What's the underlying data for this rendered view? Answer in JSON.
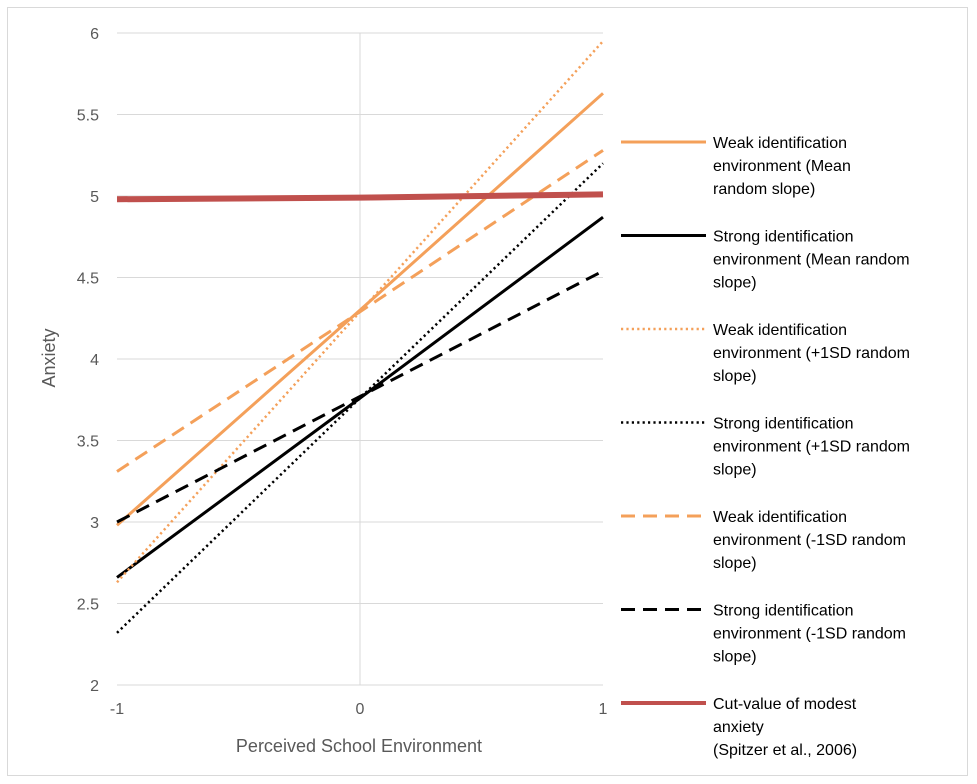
{
  "chart_data": {
    "type": "line",
    "xlabel": "Perceived School Environment",
    "ylabel": "Anxiety",
    "xlim": [
      -1,
      1
    ],
    "ylim": [
      2,
      6
    ],
    "x_ticks": [
      "-1",
      "0",
      "1"
    ],
    "y_ticks": [
      "2",
      "2.5",
      "3",
      "3.5",
      "4",
      "4.5",
      "5",
      "5.5",
      "6"
    ],
    "grid": "horizontal",
    "legend_position": "right",
    "x": [
      -1,
      0,
      1
    ],
    "series": [
      {
        "name_lines": [
          "Weak identification",
          "environment  (Mean",
          "random slope)"
        ],
        "values": [
          2.98,
          4.3,
          5.63
        ],
        "color": "#f4a05a",
        "dash": "solid",
        "width": 3
      },
      {
        "name_lines": [
          "Strong identification",
          "environment (Mean random",
          "slope)"
        ],
        "values": [
          2.66,
          3.76,
          4.87
        ],
        "color": "#000000",
        "dash": "solid",
        "width": 3
      },
      {
        "name_lines": [
          "Weak identification",
          "environment (+1SD random",
          "slope)"
        ],
        "values": [
          2.63,
          4.29,
          5.95
        ],
        "color": "#f4a05a",
        "dash": "dotted",
        "width": 2.5
      },
      {
        "name_lines": [
          "Strong identification",
          "environment (+1SD random",
          "slope)"
        ],
        "values": [
          2.32,
          3.76,
          5.2
        ],
        "color": "#000000",
        "dash": "dotted",
        "width": 2.5
      },
      {
        "name_lines": [
          "Weak identification",
          "environment (-1SD random",
          "slope)"
        ],
        "values": [
          3.31,
          4.29,
          5.28
        ],
        "color": "#f4a05a",
        "dash": "dashed",
        "width": 3
      },
      {
        "name_lines": [
          "Strong identification",
          "environment (-1SD random",
          "slope)"
        ],
        "values": [
          3.0,
          3.77,
          4.54
        ],
        "color": "#000000",
        "dash": "dashed",
        "width": 3
      },
      {
        "name_lines": [
          "Cut-value  of modest",
          "anxiety",
          "(Spitzer et al., 2006)"
        ],
        "values": [
          4.98,
          4.99,
          5.01
        ],
        "color": "#c0504d",
        "dash": "solid",
        "width": 6
      }
    ]
  }
}
